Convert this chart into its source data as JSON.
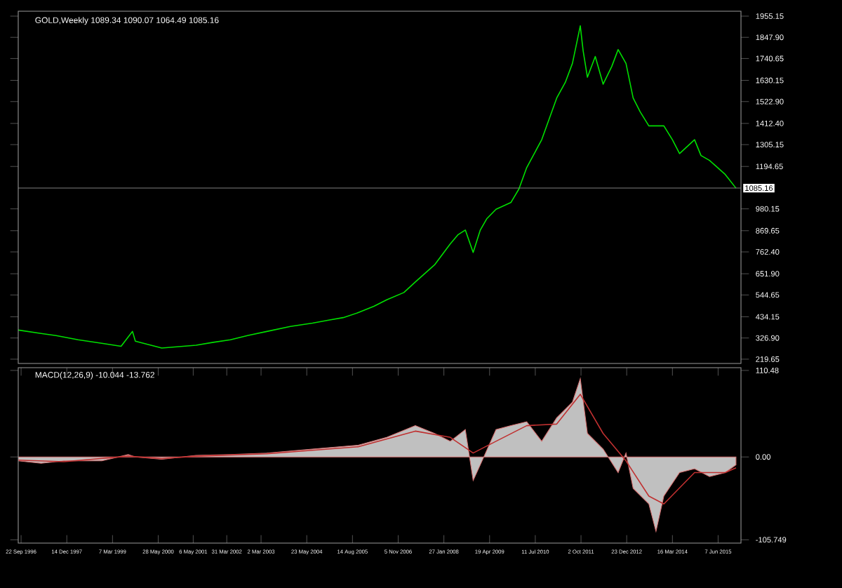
{
  "chart_data": [
    {
      "type": "line",
      "title": "GOLD,Weekly 1089.34 1090.07 1064.49 1085.16",
      "tick_labels": "y",
      "xlim": [
        "1996-08-25",
        "2016-01-17"
      ],
      "ylim": [
        198,
        1980
      ],
      "yticks": [
        {
          "value": 219.65,
          "label": "219.65"
        },
        {
          "value": 326.9,
          "label": "326.90"
        },
        {
          "value": 434.15,
          "label": "434.15"
        },
        {
          "value": 544.65,
          "label": "544.65"
        },
        {
          "value": 651.9,
          "label": "651.90"
        },
        {
          "value": 762.4,
          "label": "762.40"
        },
        {
          "value": 869.65,
          "label": "869.65"
        },
        {
          "value": 980.15,
          "label": "980.15"
        },
        {
          "value": 1194.65,
          "label": "1194.65"
        },
        {
          "value": 1305.15,
          "label": "1305.15"
        },
        {
          "value": 1412.4,
          "label": "1412.40"
        },
        {
          "value": 1522.9,
          "label": "1522.90"
        },
        {
          "value": 1630.15,
          "label": "1630.15"
        },
        {
          "value": 1740.65,
          "label": "1740.65"
        },
        {
          "value": 1847.9,
          "label": "1847.90"
        },
        {
          "value": 1955.15,
          "label": "1955.15"
        }
      ],
      "ref_lines": [
        {
          "axis": "y",
          "value": 1085.16,
          "label": "1085.16",
          "color": "#808080"
        }
      ],
      "series": [
        {
          "color": "#00e000",
          "x": [
            "1996-08-25",
            "1997-04-06",
            "1997-08-31",
            "1998-04-05",
            "1998-11-22",
            "1999-05-30",
            "1999-09-19",
            "1999-10-17",
            "2000-07-02",
            "2000-12-17",
            "2001-06-03",
            "2001-11-18",
            "2002-05-05",
            "2002-10-27",
            "2003-04-27",
            "2003-12-14",
            "2004-07-18",
            "2005-01-02",
            "2005-05-15",
            "2005-10-09",
            "2006-03-12",
            "2006-07-16",
            "2006-12-31",
            "2007-04-22",
            "2007-10-28",
            "2008-01-27",
            "2008-03-30",
            "2008-06-15",
            "2008-08-24",
            "2008-11-09",
            "2009-01-18",
            "2009-03-22",
            "2009-06-21",
            "2009-11-15",
            "2010-01-31",
            "2010-04-18",
            "2010-09-12",
            "2011-02-06",
            "2011-05-01",
            "2011-07-10",
            "2011-09-25",
            "2011-10-23",
            "2011-12-04",
            "2012-02-19",
            "2012-05-06",
            "2012-07-29",
            "2012-09-30",
            "2012-12-16",
            "2013-02-24",
            "2013-05-05",
            "2013-07-28",
            "2013-12-22",
            "2014-03-16",
            "2014-05-25",
            "2014-10-19",
            "2014-12-21",
            "2015-03-15",
            "2015-08-16",
            "2015-11-29"
          ],
          "values": [
            367,
            350,
            339,
            318,
            300,
            285,
            360,
            311,
            276,
            283,
            290,
            305,
            318,
            340,
            360,
            385,
            402,
            418,
            430,
            455,
            487,
            520,
            557,
            610,
            697,
            760,
            803,
            850,
            873,
            760,
            873,
            930,
            978,
            1013,
            1080,
            1189,
            1330,
            1541,
            1620,
            1716,
            1906,
            1780,
            1646,
            1751,
            1611,
            1700,
            1786,
            1716,
            1541,
            1470,
            1400,
            1400,
            1330,
            1260,
            1330,
            1250,
            1225,
            1154,
            1085
          ]
        }
      ]
    },
    {
      "type": "area",
      "title": "MACD(12,26,9) -10.044 -13.762",
      "xlim": [
        "1996-08-25",
        "2016-01-17"
      ],
      "ylim": [
        -110,
        114
      ],
      "xticks": [
        {
          "value": "1996-09-22",
          "label": "22 Sep 1996"
        },
        {
          "value": "1997-12-14",
          "label": "14 Dec 1997"
        },
        {
          "value": "1999-03-07",
          "label": "7 Mar 1999"
        },
        {
          "value": "2000-05-28",
          "label": "28 May 2000"
        },
        {
          "value": "2001-05-06",
          "label": "6 May 2001"
        },
        {
          "value": "2002-03-31",
          "label": "31 Mar 2002"
        },
        {
          "value": "2003-03-02",
          "label": "2 Mar 2003"
        },
        {
          "value": "2004-05-23",
          "label": "23 May 2004"
        },
        {
          "value": "2005-08-14",
          "label": "14 Aug 2005"
        },
        {
          "value": "2006-11-05",
          "label": "5 Nov 2006"
        },
        {
          "value": "2008-01-27",
          "label": "27 Jan 2008"
        },
        {
          "value": "2009-04-19",
          "label": "19 Apr 2009"
        },
        {
          "value": "2010-07-11",
          "label": "11 Jul 2010"
        },
        {
          "value": "2011-10-02",
          "label": "2 Oct 2011"
        },
        {
          "value": "2012-12-23",
          "label": "23 Dec 2012"
        },
        {
          "value": "2014-03-16",
          "label": "16 Mar 2014"
        },
        {
          "value": "2015-06-07",
          "label": "7 Jun 2015"
        }
      ],
      "yticks": [
        {
          "value": 110.48,
          "label": "110.48"
        },
        {
          "value": 0,
          "label": "0.00"
        },
        {
          "value": -105.749,
          "label": "-105.749"
        }
      ],
      "series": [
        {
          "color": "#c0c0c0",
          "x": [
            "1996-08-25",
            "1997-04-06",
            "1997-11-16",
            "1998-11-22",
            "1999-08-08",
            "1999-10-17",
            "2000-07-02",
            "2001-06-03",
            "2002-05-05",
            "2003-04-27",
            "2004-07-18",
            "2005-10-09",
            "2006-07-16",
            "2007-04-22",
            "2007-10-28",
            "2008-03-30",
            "2008-08-24",
            "2008-11-09",
            "2009-01-18",
            "2009-06-21",
            "2009-11-15",
            "2010-04-18",
            "2010-09-12",
            "2011-02-06",
            "2011-07-10",
            "2011-09-25",
            "2011-12-04",
            "2012-05-06",
            "2012-09-30",
            "2012-12-16",
            "2013-02-24",
            "2013-07-28",
            "2013-10-06",
            "2013-12-22",
            "2014-05-25",
            "2014-10-19",
            "2015-03-15",
            "2015-08-16",
            "2015-11-29"
          ],
          "values": [
            -5,
            -8,
            -5,
            -5,
            3,
            0,
            -3,
            2,
            3,
            5,
            10,
            15,
            25,
            40,
            30,
            20,
            35,
            -30,
            -10,
            35,
            40,
            45,
            20,
            50,
            70,
            100,
            30,
            10,
            -20,
            5,
            -40,
            -60,
            -95,
            -50,
            -20,
            -15,
            -25,
            -20,
            -10
          ]
        },
        {
          "type": "line",
          "color": "#c03030",
          "x": [
            "1996-08-25",
            "1997-11-16",
            "1999-08-08",
            "2000-07-02",
            "2001-06-03",
            "2003-04-27",
            "2005-10-09",
            "2007-04-22",
            "2008-03-30",
            "2008-11-09",
            "2009-06-21",
            "2010-04-18",
            "2011-02-06",
            "2011-09-25",
            "2012-05-06",
            "2012-12-16",
            "2013-07-28",
            "2013-12-22",
            "2014-10-19",
            "2015-08-16",
            "2015-11-29"
          ],
          "values": [
            -4,
            -6,
            1,
            -2,
            1,
            4,
            13,
            33,
            25,
            5,
            20,
            40,
            42,
            80,
            30,
            -5,
            -50,
            -60,
            -20,
            -20,
            -14
          ]
        }
      ]
    }
  ]
}
